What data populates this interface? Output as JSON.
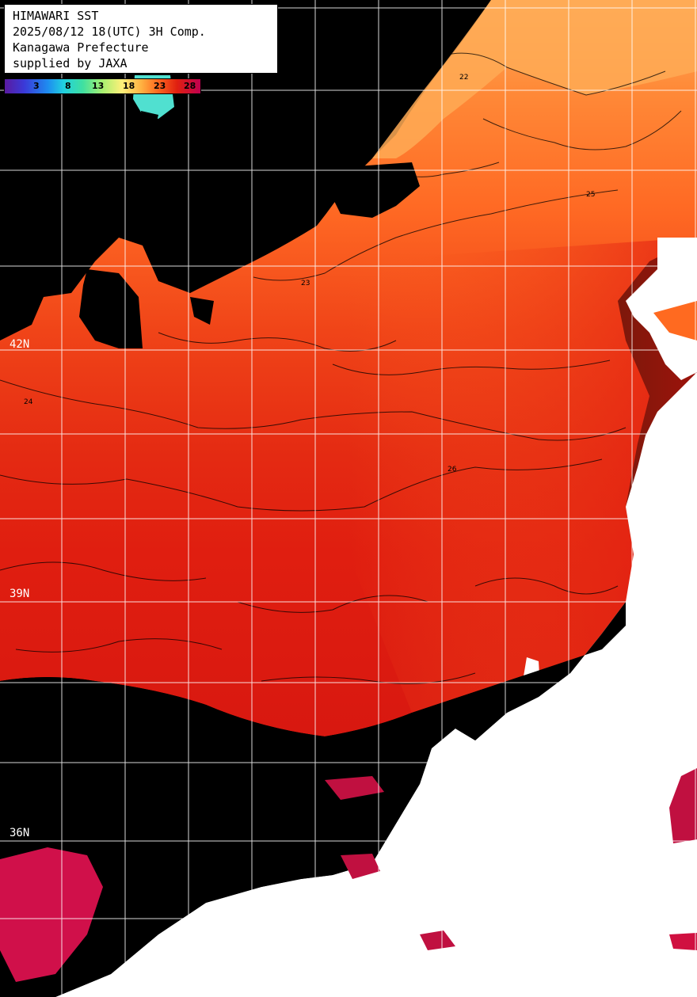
{
  "header": {
    "line1": "HIMAWARI SST",
    "line2": "2025/08/12 18(UTC) 3H Comp.",
    "line3": "Kanagawa Prefecture",
    "line4": "supplied by JAXA"
  },
  "colorbar": {
    "ticks": [
      "3",
      "8",
      "13",
      "18",
      "23",
      "28"
    ],
    "colors": [
      "#5a1aa0",
      "#1e8cf0",
      "#40e0a0",
      "#fff07a",
      "#ff6a20",
      "#c00050"
    ]
  },
  "latitude_labels": [
    "42N",
    "39N",
    "36N"
  ],
  "contour_labels": [
    "22",
    "23",
    "24",
    "25",
    "26"
  ],
  "colors": {
    "sea_warm": "#e02010",
    "sea_cool": "#ff7a30",
    "sea_north": "#ffa050",
    "land": "#ffffff",
    "no_data": "#000000",
    "hot": "#d01040",
    "grid": "#ffffff"
  }
}
